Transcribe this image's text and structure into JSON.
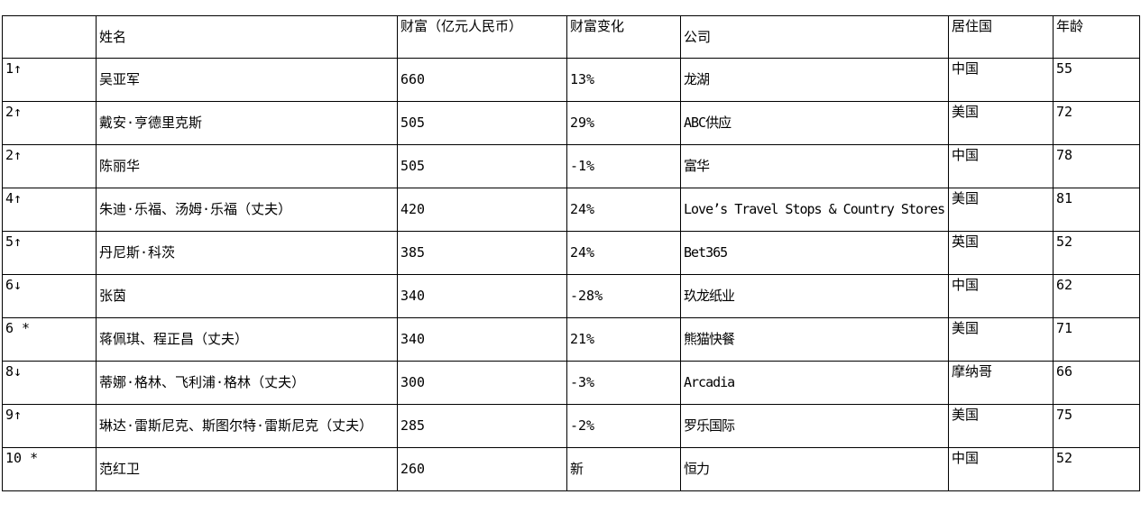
{
  "table": {
    "columns": [
      {
        "key": "rank",
        "label": ""
      },
      {
        "key": "name",
        "label": "姓名"
      },
      {
        "key": "wealth",
        "label": "财富（亿元人民币）"
      },
      {
        "key": "change",
        "label": "财富变化"
      },
      {
        "key": "company",
        "label": "公司"
      },
      {
        "key": "country",
        "label": "居住国"
      },
      {
        "key": "age",
        "label": "年龄"
      }
    ],
    "rows": [
      {
        "rank": "1↑",
        "name": "吴亚军",
        "wealth": "660",
        "change": "13%",
        "company": "龙湖",
        "country": "中国",
        "age": "55"
      },
      {
        "rank": "2↑",
        "name": "戴安·亨德里克斯",
        "wealth": "505",
        "change": "29%",
        "company": "ABC供应",
        "country": "美国",
        "age": "72"
      },
      {
        "rank": "2↑",
        "name": "陈丽华",
        "wealth": "505",
        "change": "-1%",
        "company": "富华",
        "country": "中国",
        "age": "78"
      },
      {
        "rank": "4↑",
        "name": "朱迪·乐福、汤姆·乐福（丈夫）",
        "wealth": "420",
        "change": "24%",
        "company": "Love’s Travel Stops & Country Stores",
        "country": "美国",
        "age": "81"
      },
      {
        "rank": "5↑",
        "name": "丹尼斯·科茨",
        "wealth": "385",
        "change": "24%",
        "company": "Bet365",
        "country": "英国",
        "age": "52"
      },
      {
        "rank": "6↓",
        "name": "张茵",
        "wealth": "340",
        "change": "-28%",
        "company": "玖龙纸业",
        "country": "中国",
        "age": "62"
      },
      {
        "rank": "6 *",
        "name": "蒋佩琪、程正昌（丈夫）",
        "wealth": "340",
        "change": "21%",
        "company": "熊猫快餐",
        "country": "美国",
        "age": "71"
      },
      {
        "rank": "8↓",
        "name": "蒂娜·格林、飞利浦·格林（丈夫）",
        "wealth": "300",
        "change": "-3%",
        "company": "Arcadia",
        "country": "摩纳哥",
        "age": "66"
      },
      {
        "rank": "9↑",
        "name": "琳达·雷斯尼克、斯图尔特·雷斯尼克（丈夫）",
        "wealth": "285",
        "change": "-2%",
        "company": "罗乐国际",
        "country": "美国",
        "age": "75"
      },
      {
        "rank": "10 *",
        "name": "范红卫",
        "wealth": "260",
        "change": "新",
        "company": "恒力",
        "country": "中国",
        "age": "52"
      }
    ],
    "colors": {
      "border": "#000000",
      "text": "#000000",
      "background": "#ffffff"
    }
  }
}
